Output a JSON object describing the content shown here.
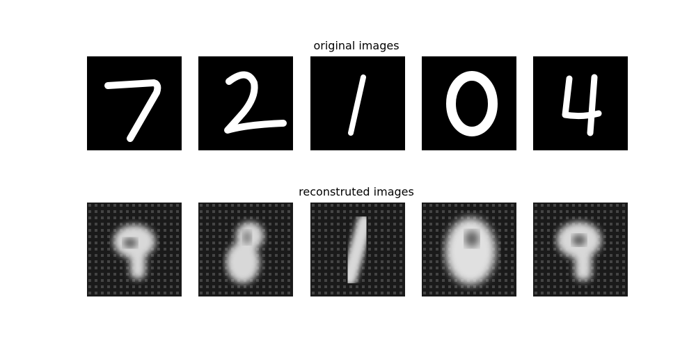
{
  "rows": {
    "original_title": "original images",
    "reconstructed_title": "reconstruted images"
  },
  "digits": {
    "original": [
      "7",
      "2",
      "1",
      "0",
      "4"
    ],
    "reconstructed_appearance": [
      "9",
      "8",
      "1",
      "0",
      "9"
    ]
  },
  "colors": {
    "background": "#ffffff",
    "tile_background": "#000000",
    "stroke": "#ffffff",
    "reconstructed_background": "#1b1b1b"
  }
}
